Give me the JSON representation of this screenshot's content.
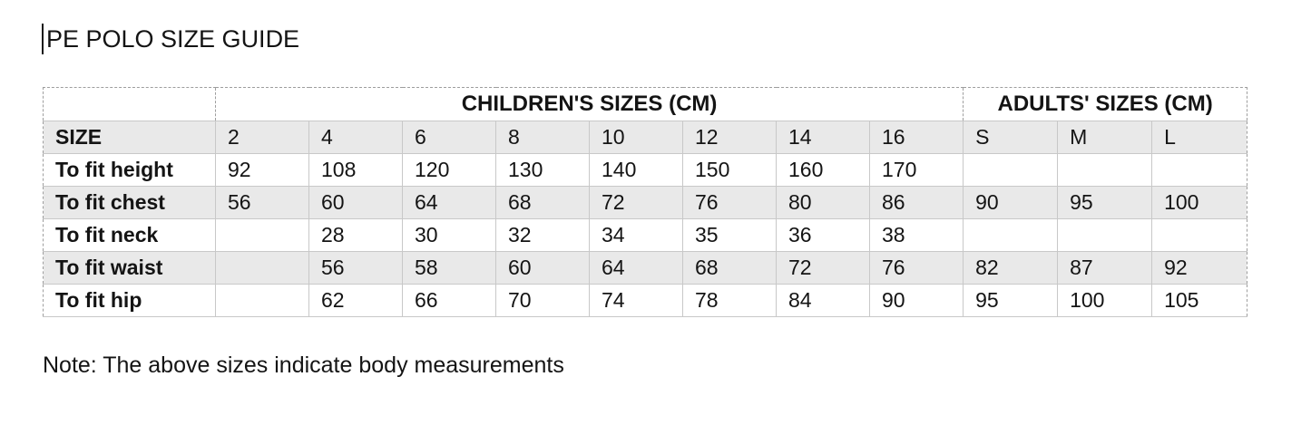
{
  "page": {
    "title": "PE POLO SIZE GUIDE",
    "note": "Note: The above sizes indicate body measurements"
  },
  "table": {
    "section_headers": {
      "children": "CHILDREN'S SIZES (CM)",
      "adults": "ADULTS' SIZES (CM)"
    },
    "size_row": {
      "label": "SIZE",
      "children_sizes": [
        "2",
        "4",
        "6",
        "8",
        "10",
        "12",
        "14",
        "16"
      ],
      "adult_sizes": [
        "S",
        "M",
        "L"
      ]
    },
    "rows": [
      {
        "label": "To fit height",
        "values": [
          "92",
          "108",
          "120",
          "130",
          "140",
          "150",
          "160",
          "170",
          "",
          "",
          ""
        ]
      },
      {
        "label": "To fit chest",
        "values": [
          "56",
          "60",
          "64",
          "68",
          "72",
          "76",
          "80",
          "86",
          "90",
          "95",
          "100"
        ]
      },
      {
        "label": "To fit neck",
        "values": [
          "",
          "28",
          "30",
          "32",
          "34",
          "35",
          "36",
          "38",
          "",
          "",
          ""
        ]
      },
      {
        "label": "To fit waist",
        "values": [
          "",
          "56",
          "58",
          "60",
          "64",
          "68",
          "72",
          "76",
          "82",
          "87",
          "92"
        ]
      },
      {
        "label": "To fit hip",
        "values": [
          "",
          "62",
          "66",
          "70",
          "74",
          "78",
          "84",
          "90",
          "95",
          "100",
          "105"
        ]
      }
    ]
  },
  "colors": {
    "row_shading": "#e9e9e9",
    "grid_border": "#c8c8c8",
    "gridline_dashed": "#9e9e9e",
    "text": "#141414"
  }
}
